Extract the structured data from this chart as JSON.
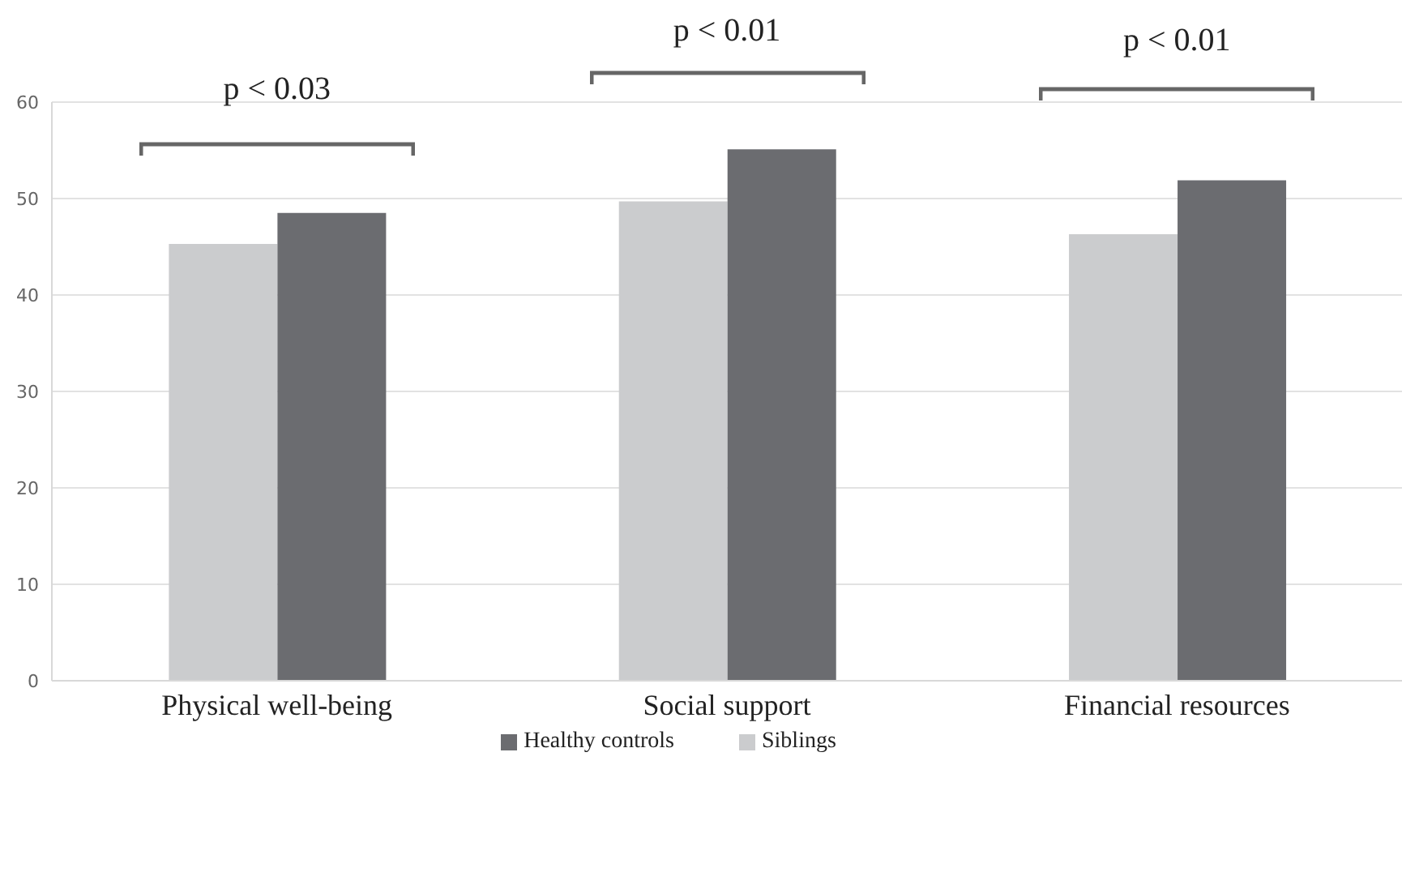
{
  "chart_data": {
    "type": "bar",
    "categories": [
      "Physical well-being",
      "Social support",
      "Financial resources"
    ],
    "series": [
      {
        "name": "Siblings",
        "color": "#cbccce",
        "values": [
          45.3,
          49.7,
          46.3
        ]
      },
      {
        "name": "Healthy controls",
        "color": "#6b6c70",
        "values": [
          48.5,
          55.1,
          51.9
        ]
      }
    ],
    "ylim": [
      0,
      60
    ],
    "yticks": [
      0,
      10,
      20,
      30,
      40,
      50,
      60
    ],
    "grid": "y",
    "legend": "bottom",
    "annotations": [
      "p < 0.03",
      "p < 0.01",
      "p < 0.01"
    ]
  }
}
